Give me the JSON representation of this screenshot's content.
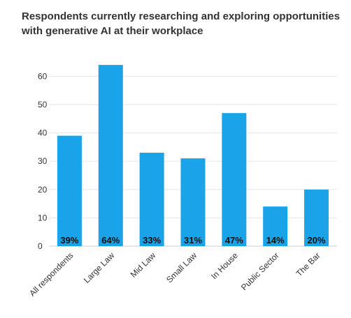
{
  "chart_data": {
    "type": "bar",
    "title": "Respondents currently researching and exploring opportunities with generative AI at their workplace",
    "xlabel": "",
    "ylabel": "",
    "categories": [
      "All respondents",
      "Large Law",
      "Mid Law",
      "Small Law",
      "In House",
      "Public Sector",
      "The Bar"
    ],
    "values": [
      39,
      64,
      33,
      31,
      47,
      14,
      20
    ],
    "data_labels": [
      "39%",
      "64%",
      "33%",
      "31%",
      "47%",
      "14%",
      "20%"
    ],
    "yticks": [
      0,
      10,
      20,
      30,
      40,
      50,
      60
    ],
    "ylim": [
      0,
      66
    ],
    "grid": true,
    "legend": "none",
    "bar_color": "#1aa3e8",
    "grid_color": "#e6e6e6",
    "axis_color": "#cccccc"
  }
}
